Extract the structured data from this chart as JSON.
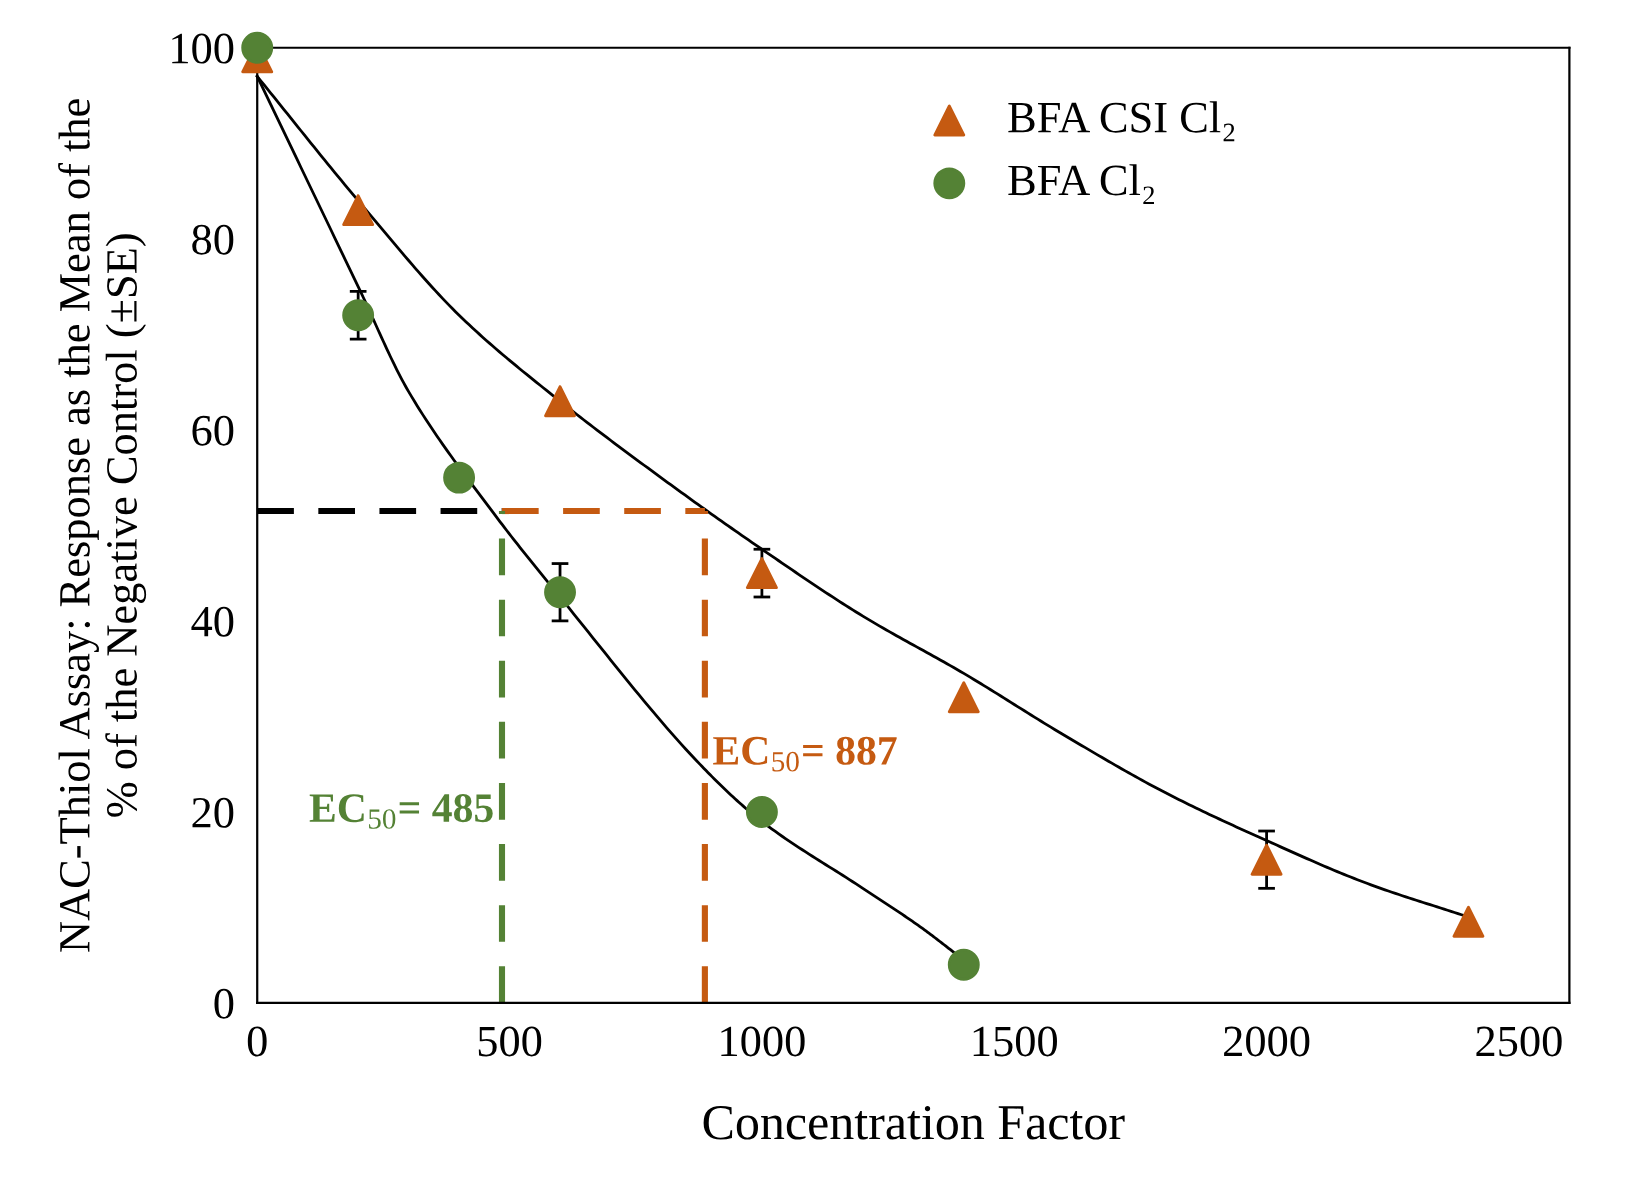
{
  "chart_data": {
    "type": "scatter",
    "xlabel": "Concentration Factor",
    "ylabel": "NAC-Thiol Assay: Response as the Mean of the\n% of the Negative Control (±SE)",
    "xlim": [
      0,
      2600
    ],
    "ylim": [
      0,
      100
    ],
    "xticks": [
      0,
      500,
      1000,
      1500,
      2000,
      2500
    ],
    "yticks": [
      0,
      20,
      40,
      60,
      80,
      100
    ],
    "grid": false,
    "legend": "top",
    "series": [
      {
        "type": "line",
        "color": "#000000",
        "marker": "none",
        "line_style": "solid",
        "x": [
          0,
          200,
          400,
          600,
          800,
          1000,
          1200,
          1400,
          1600,
          1800,
          2000,
          2200,
          2400
        ],
        "values": [
          97,
          84,
          72,
          63,
          55,
          47.5,
          40.5,
          34.5,
          28,
          22,
          17,
          12.5,
          9
        ]
      },
      {
        "type": "line",
        "color": "#000000",
        "marker": "none",
        "line_style": "solid",
        "x": [
          0,
          200,
          300,
          468,
          600,
          877,
          1000,
          1200,
          1313,
          1400
        ],
        "values": [
          97,
          75,
          64,
          51.3,
          42.5,
          25,
          19,
          12,
          8,
          4.5
        ]
      },
      {
        "name": "BFA CSI Cl₂",
        "color": "#c55a11",
        "marker": "triangle",
        "x": [
          0,
          200,
          600,
          1000,
          1400,
          2000,
          2400
        ],
        "values": [
          99,
          83,
          63,
          45,
          32,
          15,
          8.5
        ],
        "errors": [
          null,
          null,
          null,
          2.5,
          null,
          3,
          null
        ]
      },
      {
        "name": "BFA Cl₂",
        "color": "#548235",
        "marker": "circle",
        "x": [
          0,
          200,
          400,
          600,
          1000,
          1400
        ],
        "values": [
          100,
          72,
          55,
          43,
          20,
          4
        ],
        "errors": [
          null,
          2.5,
          null,
          3,
          null,
          null
        ]
      },
      {
        "type": "line",
        "color": "#000000",
        "marker": "none",
        "line_style": "dashed",
        "x": [
          0,
          485
        ],
        "values": [
          51.5,
          51.5
        ]
      },
      {
        "type": "line",
        "color": "#c55a11",
        "marker": "none",
        "line_style": "dashed",
        "x": [
          485,
          887
        ],
        "values": [
          51.5,
          51.5
        ]
      },
      {
        "type": "line",
        "color": "#548235",
        "marker": "none",
        "line_style": "dashed",
        "x": [
          485,
          485
        ],
        "values": [
          0,
          51.5
        ]
      },
      {
        "type": "line",
        "color": "#c55a11",
        "marker": "none",
        "line_style": "dashed",
        "x": [
          887,
          887
        ],
        "values": [
          0,
          51.5
        ]
      }
    ],
    "annotations": [
      {
        "text": "EC$_{50}$= 485",
        "x": 485,
        "y": 20
      },
      {
        "text": "EC$_{50}$= 887",
        "x": 887,
        "y": 26
      }
    ]
  }
}
